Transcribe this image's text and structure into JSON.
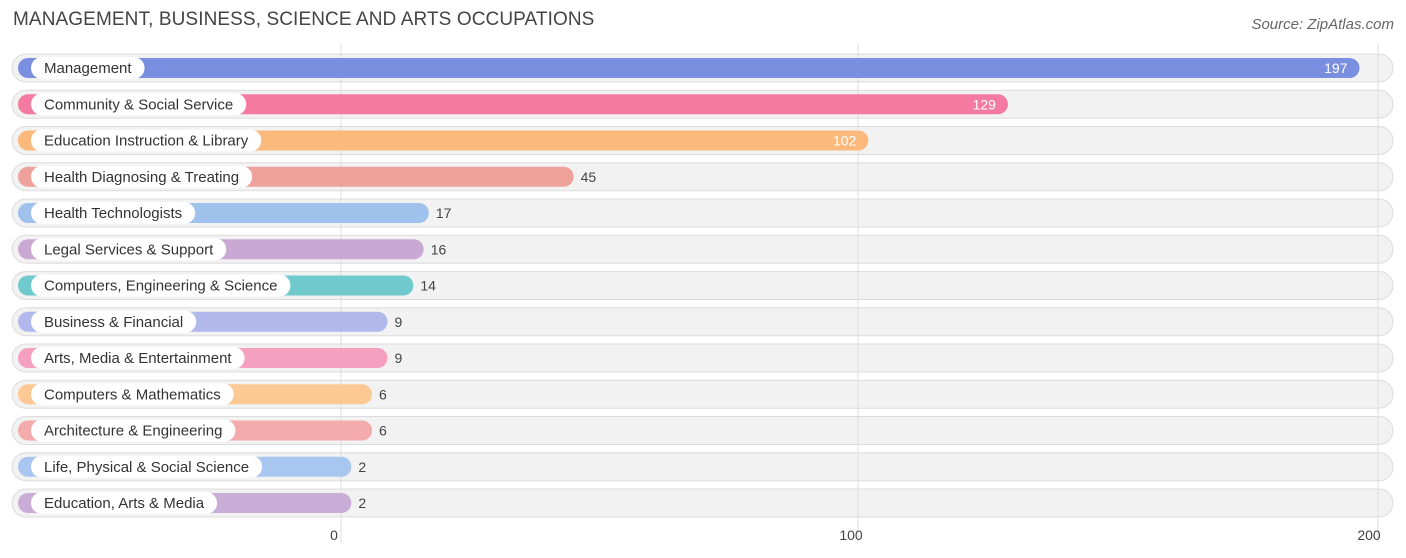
{
  "header": {
    "title": "MANAGEMENT, BUSINESS, SCIENCE AND ARTS OCCUPATIONS",
    "source": "Source: ZipAtlas.com"
  },
  "chart_data": {
    "type": "bar",
    "orientation": "horizontal",
    "title": "MANAGEMENT, BUSINESS, SCIENCE AND ARTS OCCUPATIONS",
    "categories": [
      "Management",
      "Community & Social Service",
      "Education Instruction & Library",
      "Health Diagnosing & Treating",
      "Health Technologists",
      "Legal Services & Support",
      "Computers, Engineering & Science",
      "Business & Financial",
      "Arts, Media & Entertainment",
      "Computers & Mathematics",
      "Architecture & Engineering",
      "Life, Physical & Social Science",
      "Education, Arts & Media"
    ],
    "values": [
      197,
      129,
      102,
      45,
      17,
      16,
      14,
      9,
      9,
      6,
      6,
      2,
      2
    ],
    "colors": [
      "#7b8fe0",
      "#f47aa1",
      "#fbb97c",
      "#efa29c",
      "#9fc2ec",
      "#c9a8d3",
      "#6fc9cd",
      "#b1b8ec",
      "#f6a0bf",
      "#fcc995",
      "#f3abab",
      "#a8c6ef",
      "#c9add6"
    ],
    "xlim": [
      0,
      200
    ],
    "xticks": [
      0,
      100,
      200
    ],
    "grid": true
  }
}
